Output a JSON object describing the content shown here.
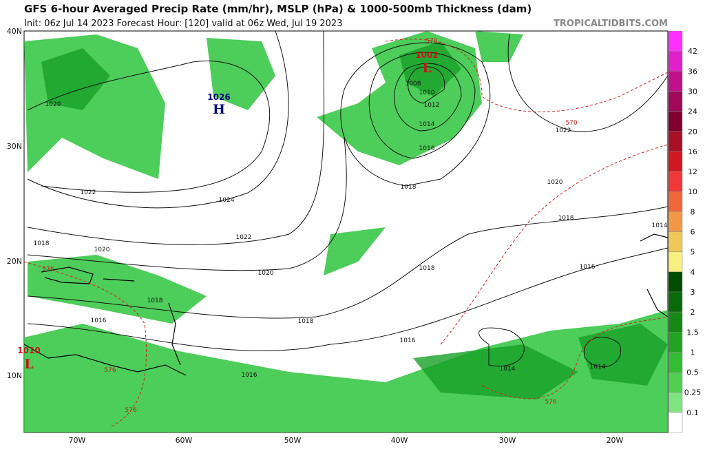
{
  "header": {
    "title": "GFS 6-hour Averaged Precip Rate (mm/hr), MSLP (hPa) & 1000-500mb Thickness (dam)",
    "subtitle": "Init: 06z Jul 14 2023   Forecast Hour: [120]   valid at 06z Wed, Jul 19 2023",
    "source": "TROPICALTIDBITS.COM"
  },
  "map": {
    "lat_labels": [
      "40N",
      "30N",
      "20N",
      "10N"
    ],
    "lon_labels": [
      "70W",
      "60W",
      "50W",
      "40W",
      "30W",
      "20W"
    ],
    "centers": [
      {
        "letter": "H",
        "pressure": "1026"
      },
      {
        "letter": "L",
        "pressure": "1002"
      },
      {
        "letter": "L",
        "pressure": "1010"
      }
    ],
    "isobar_labels": [
      "1020",
      "1022",
      "1024",
      "1022",
      "1020",
      "1018",
      "1020",
      "1018",
      "1016",
      "1018",
      "1016",
      "1016",
      "1018",
      "1018",
      "1020",
      "1022",
      "1016",
      "1014",
      "1014",
      "1014",
      "1018",
      "1016",
      "1014",
      "1012",
      "1010",
      "1008"
    ],
    "thickness_labels": [
      "570",
      "570",
      "576",
      "576",
      "576",
      "576"
    ]
  },
  "colorbar": {
    "labels": [
      "42",
      "36",
      "30",
      "24",
      "20",
      "16",
      "12",
      "10",
      "8",
      "6",
      "5",
      "4",
      "3",
      "2",
      "1.5",
      "1",
      "0.5",
      "0.25",
      "0.1"
    ],
    "colors": [
      "#ff30ff",
      "#e020c8",
      "#c0108c",
      "#a00858",
      "#800030",
      "#a81028",
      "#d01820",
      "#f03838",
      "#f06838",
      "#f09848",
      "#f0c858",
      "#f8f080",
      "#004c00",
      "#0a6a0a",
      "#168816",
      "#22a422",
      "#34bc34",
      "#50d050",
      "#80e480",
      "#ffffff"
    ]
  }
}
